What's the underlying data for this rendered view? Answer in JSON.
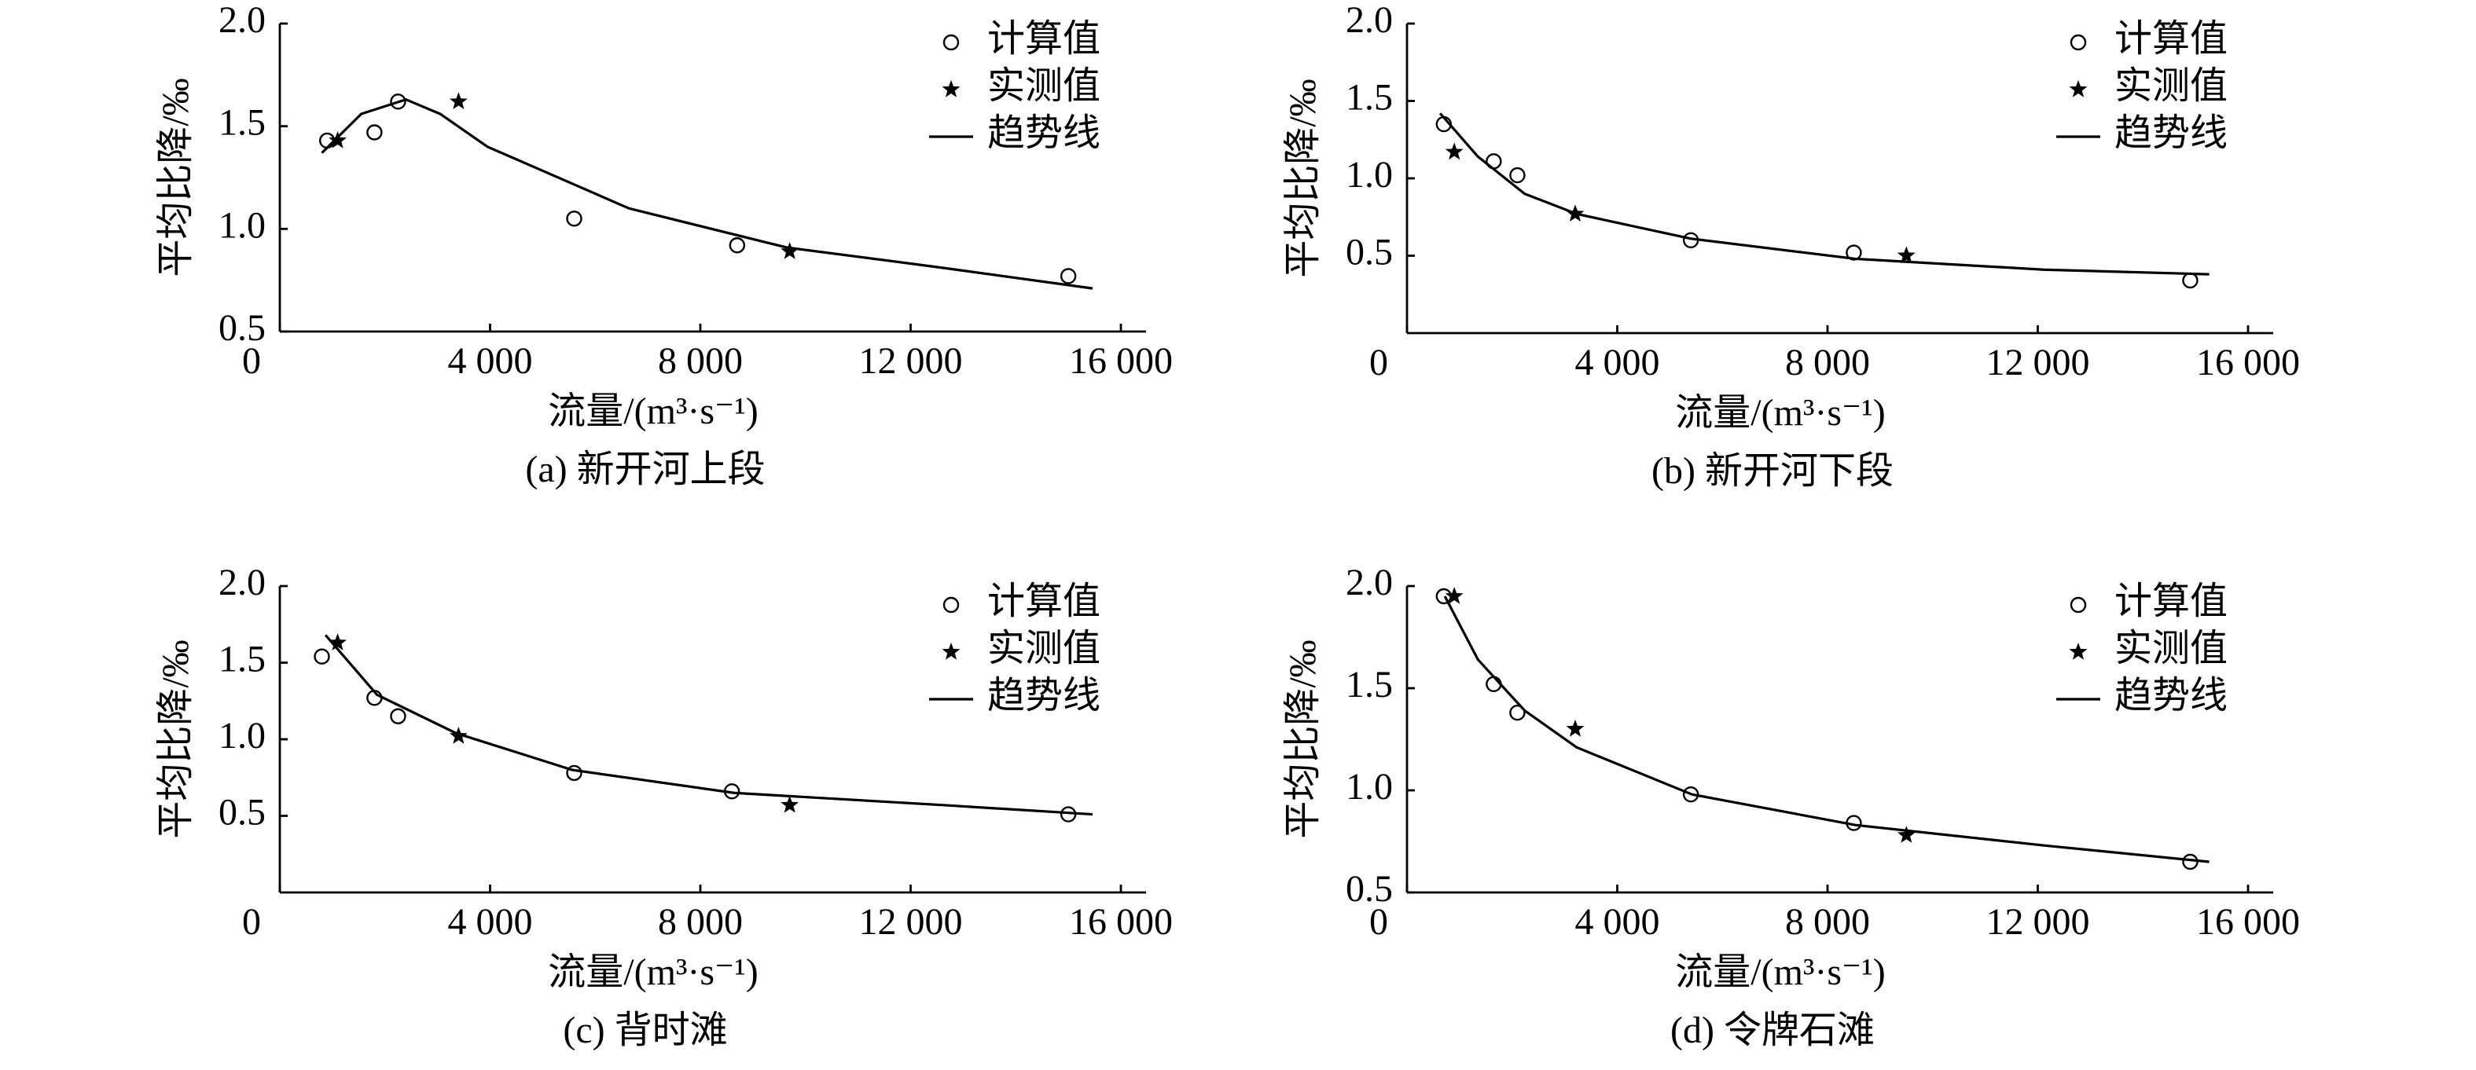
{
  "chart_data": [
    {
      "type": "scatter",
      "title": "(a) 新开河上段",
      "xlabel": "流量/(m³·s⁻¹)",
      "ylabel": "平均比降/‰",
      "xlim": [
        0,
        16000
      ],
      "xticks": [
        0,
        {
          "value": 4000,
          "label": "4 000"
        },
        {
          "value": 8000,
          "label": "8 000"
        },
        {
          "value": 12000,
          "label": "12 000"
        },
        {
          "value": 16000,
          "label": "16 000"
        }
      ],
      "ylim": [
        0.5,
        2
      ],
      "yticks": [
        0.5,
        {
          "value": 1,
          "label": "1.0"
        },
        1.5,
        {
          "value": 2,
          "label": "2.0"
        }
      ],
      "legend": "upper right",
      "series": [
        {
          "name": "计算值",
          "marker": "circle",
          "color": "#000000",
          "x": [
            900,
            1800,
            2250,
            5600,
            8700,
            15000
          ],
          "values": [
            1.43,
            1.47,
            1.62,
            1.05,
            0.92,
            0.77
          ]
        },
        {
          "name": "实测值",
          "marker": "star",
          "color": "#000000",
          "x": [
            1100,
            3400,
            9700
          ],
          "values": [
            1.43,
            1.62,
            0.89
          ]
        },
        {
          "name": "趋势线",
          "marker": "line",
          "color": "#000000",
          "x": [
            800,
            1550,
            2400,
            3050,
            3950,
            6640,
            9630,
            12620,
            15460
          ],
          "values": [
            1.37,
            1.56,
            1.63,
            1.56,
            1.4,
            1.1,
            0.91,
            0.81,
            0.71
          ]
        }
      ]
    },
    {
      "type": "scatter",
      "title": "(b) 新开河下段",
      "xlabel": "流量/(m³·s⁻¹)",
      "ylabel": "平均比降/‰",
      "xlim": [
        0,
        16000
      ],
      "xticks": [
        0,
        {
          "value": 4000,
          "label": "4 000"
        },
        {
          "value": 8000,
          "label": "8 000"
        },
        {
          "value": 12000,
          "label": "12 000"
        },
        {
          "value": 16000,
          "label": "16 000"
        }
      ],
      "ylim": [
        0,
        2
      ],
      "yticks": [
        0.5,
        {
          "value": 1,
          "label": "1.0"
        },
        1.5,
        {
          "value": 2,
          "label": "2.0"
        }
      ],
      "legend": "upper right",
      "series": [
        {
          "name": "计算值",
          "marker": "circle",
          "color": "#000000",
          "x": [
            700,
            1650,
            2100,
            5400,
            8500,
            14900
          ],
          "values": [
            1.35,
            1.11,
            1.02,
            0.6,
            0.52,
            0.34
          ]
        },
        {
          "name": "实测值",
          "marker": "star",
          "color": "#000000",
          "x": [
            900,
            3200,
            9500
          ],
          "values": [
            1.17,
            0.77,
            0.5
          ]
        },
        {
          "name": "趋势线",
          "marker": "line",
          "color": "#000000",
          "x": [
            630,
            1350,
            2240,
            3230,
            5400,
            8530,
            12110,
            15260
          ],
          "values": [
            1.42,
            1.14,
            0.9,
            0.77,
            0.61,
            0.48,
            0.41,
            0.38
          ]
        }
      ]
    },
    {
      "type": "scatter",
      "title": "(c) 背时滩",
      "xlabel": "流量/(m³·s⁻¹)",
      "ylabel": "平均比降/‰",
      "xlim": [
        0,
        16000
      ],
      "xticks": [
        0,
        {
          "value": 4000,
          "label": "4 000"
        },
        {
          "value": 8000,
          "label": "8 000"
        },
        {
          "value": 12000,
          "label": "12 000"
        },
        {
          "value": 16000,
          "label": "16 000"
        }
      ],
      "ylim": [
        0,
        2
      ],
      "yticks": [
        0.5,
        {
          "value": 1,
          "label": "1.0"
        },
        1.5,
        {
          "value": 2,
          "label": "2.0"
        }
      ],
      "legend": "upper right",
      "series": [
        {
          "name": "计算值",
          "marker": "circle",
          "color": "#000000",
          "x": [
            800,
            1800,
            2250,
            5600,
            8600,
            15000
          ],
          "values": [
            1.54,
            1.27,
            1.15,
            0.78,
            0.66,
            0.51
          ]
        },
        {
          "name": "实测值",
          "marker": "star",
          "color": "#000000",
          "x": [
            1100,
            3400,
            9700
          ],
          "values": [
            1.63,
            1.02,
            0.57
          ]
        },
        {
          "name": "趋势线",
          "marker": "line",
          "color": "#000000",
          "x": [
            870,
            1850,
            3350,
            5560,
            8640,
            12620,
            15460
          ],
          "values": [
            1.68,
            1.29,
            1.04,
            0.8,
            0.65,
            0.57,
            0.51
          ]
        }
      ]
    },
    {
      "type": "scatter",
      "title": "(d) 令牌石滩",
      "xlabel": "流量/(m³·s⁻¹)",
      "ylabel": "平均比降/‰",
      "xlim": [
        0,
        16000
      ],
      "xticks": [
        0,
        {
          "value": 4000,
          "label": "4 000"
        },
        {
          "value": 8000,
          "label": "8 000"
        },
        {
          "value": 12000,
          "label": "12 000"
        },
        {
          "value": 16000,
          "label": "16 000"
        }
      ],
      "ylim": [
        0.5,
        2
      ],
      "yticks": [
        0.5,
        {
          "value": 1,
          "label": "1.0"
        },
        1.5,
        {
          "value": 2,
          "label": "2.0"
        }
      ],
      "legend": "upper right",
      "series": [
        {
          "name": "计算值",
          "marker": "circle",
          "color": "#000000",
          "x": [
            700,
            1650,
            2100,
            5400,
            8500,
            14900
          ],
          "values": [
            1.95,
            1.52,
            1.38,
            0.98,
            0.84,
            0.65
          ]
        },
        {
          "name": "实测值",
          "marker": "star",
          "color": "#000000",
          "x": [
            900,
            3200,
            9500
          ],
          "values": [
            1.95,
            1.3,
            0.78
          ]
        },
        {
          "name": "趋势线",
          "marker": "line",
          "color": "#000000",
          "x": [
            720,
            1350,
            2240,
            3230,
            5420,
            8530,
            12120,
            15260
          ],
          "values": [
            1.95,
            1.64,
            1.39,
            1.21,
            0.98,
            0.83,
            0.73,
            0.65
          ]
        }
      ]
    }
  ]
}
